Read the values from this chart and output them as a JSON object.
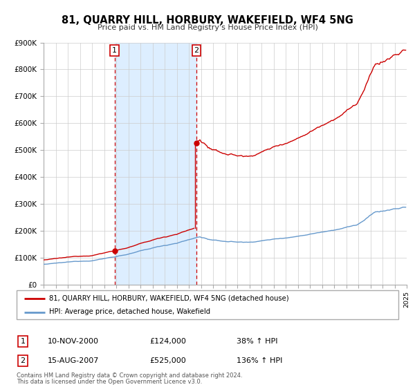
{
  "title": "81, QUARRY HILL, HORBURY, WAKEFIELD, WF4 5NG",
  "subtitle": "Price paid vs. HM Land Registry's House Price Index (HPI)",
  "hpi_label": "HPI: Average price, detached house, Wakefield",
  "price_label": "81, QUARRY HILL, HORBURY, WAKEFIELD, WF4 5NG (detached house)",
  "footer1": "Contains HM Land Registry data © Crown copyright and database right 2024.",
  "footer2": "This data is licensed under the Open Government Licence v3.0.",
  "sale1_date": "10-NOV-2000",
  "sale1_price": 124000,
  "sale1_hpi_text": "38% ↑ HPI",
  "sale2_date": "15-AUG-2007",
  "sale2_price": 525000,
  "sale2_hpi_text": "136% ↑ HPI",
  "sale1_x": 2000.87,
  "sale2_x": 2007.62,
  "price_color": "#cc0000",
  "hpi_color": "#6699cc",
  "highlight_color": "#ddeeff",
  "dashed_color": "#cc0000",
  "ylim": [
    0,
    900000
  ],
  "xlim": [
    1995,
    2025
  ],
  "yticks": [
    0,
    100000,
    200000,
    300000,
    400000,
    500000,
    600000,
    700000,
    800000,
    900000
  ],
  "ytick_labels": [
    "£0",
    "£100K",
    "£200K",
    "£300K",
    "£400K",
    "£500K",
    "£600K",
    "£700K",
    "£800K",
    "£900K"
  ]
}
